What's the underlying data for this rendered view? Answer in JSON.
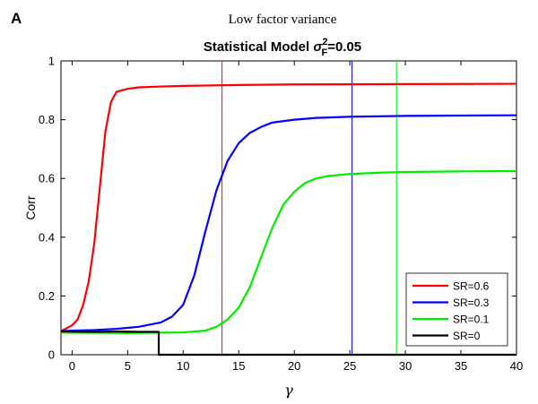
{
  "panel_letter": "A",
  "supertitle": "Low factor variance",
  "chart_data": {
    "type": "line",
    "title": {
      "prefix": "Statistical Model ",
      "symbol": "σ",
      "superscript": "2",
      "subscript": "F",
      "suffix": "=0.05"
    },
    "xlabel": "γ",
    "ylabel": "Corr",
    "xlim": [
      -1,
      40
    ],
    "ylim": [
      0,
      1
    ],
    "xticks": [
      0,
      5,
      10,
      15,
      20,
      25,
      30,
      35,
      40
    ],
    "yticks": [
      0,
      0.2,
      0.4,
      0.6,
      0.8,
      1
    ],
    "ytick_labels": [
      "0",
      "0.2",
      "0.4",
      "0.6",
      "0.8",
      "1"
    ],
    "grid": false,
    "legend_position": "bottom-right",
    "series": [
      {
        "name": "SR=0.6",
        "color": "#ff0000",
        "x": [
          -1,
          0,
          0.5,
          1,
          1.5,
          2,
          2.5,
          3,
          3.5,
          4,
          5,
          6,
          8,
          10,
          15,
          20,
          30,
          40
        ],
        "y": [
          0.08,
          0.1,
          0.12,
          0.17,
          0.25,
          0.38,
          0.57,
          0.76,
          0.86,
          0.895,
          0.905,
          0.91,
          0.913,
          0.915,
          0.918,
          0.92,
          0.921,
          0.922
        ]
      },
      {
        "name": "SR=0.3",
        "color": "#0000ff",
        "x": [
          -1,
          0,
          2,
          4,
          6,
          8,
          9,
          10,
          11,
          12,
          13,
          14,
          15,
          16,
          17,
          18,
          20,
          22,
          25,
          30,
          35,
          40
        ],
        "y": [
          0.08,
          0.082,
          0.084,
          0.088,
          0.095,
          0.11,
          0.13,
          0.17,
          0.27,
          0.42,
          0.56,
          0.66,
          0.72,
          0.755,
          0.775,
          0.79,
          0.8,
          0.806,
          0.81,
          0.813,
          0.814,
          0.815
        ]
      },
      {
        "name": "SR=0.1",
        "color": "#00ee00",
        "x": [
          -1,
          0,
          5,
          10,
          12,
          13,
          14,
          15,
          16,
          17,
          18,
          19,
          20,
          21,
          22,
          23,
          25,
          28,
          30,
          35,
          40
        ],
        "y": [
          0.075,
          0.075,
          0.074,
          0.076,
          0.082,
          0.095,
          0.12,
          0.16,
          0.23,
          0.33,
          0.43,
          0.51,
          0.555,
          0.585,
          0.6,
          0.608,
          0.615,
          0.62,
          0.622,
          0.624,
          0.625
        ]
      },
      {
        "name": "SR=0",
        "color": "#000000",
        "x": [
          -1,
          0,
          2,
          4,
          6,
          7.8,
          7.8,
          10,
          20,
          30,
          40
        ],
        "y": [
          0.08,
          0.079,
          0.078,
          0.079,
          0.078,
          0.078,
          0,
          0,
          0,
          0,
          0
        ]
      }
    ],
    "vertical_lines": [
      {
        "x": 13.5,
        "color": "#ff0000"
      },
      {
        "x": 25.2,
        "color": "#0000ff"
      },
      {
        "x": 29.2,
        "color": "#00ee00"
      }
    ]
  }
}
